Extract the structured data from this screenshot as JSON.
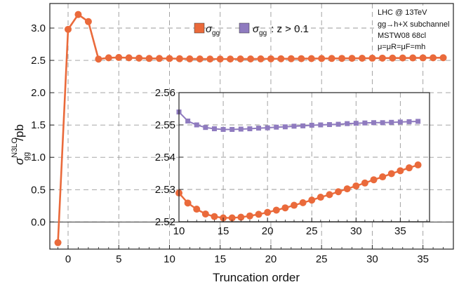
{
  "colors": {
    "series_gg": "#ea6a3b",
    "series_gg_cut": "#8f7bbf",
    "grid": "#999999",
    "frame": "#222222"
  },
  "legend": {
    "item1": {
      "main": "σ",
      "sub": "gg"
    },
    "item2": {
      "main": "σ",
      "sub": "gg",
      "suffix": ": z > 0.1"
    }
  },
  "annotations": {
    "line1": "LHC @ 13TeV",
    "line2": "gg→h+X subchannel",
    "line3": "MSTW08 68cl",
    "line4": "μ=μR=μF=mh"
  },
  "chart_data": [
    {
      "type": "line",
      "xlabel": "Truncation order",
      "ylabel": "σ_gg^N3LO/pb",
      "xlim": [
        -1.8,
        38
      ],
      "ylim": [
        -0.42,
        3.38
      ],
      "xticks": [
        0,
        5,
        10,
        15,
        20,
        25,
        30,
        35
      ],
      "yticks": [
        0.0,
        0.5,
        1.0,
        1.5,
        2.0,
        2.5,
        3.0
      ],
      "ytick_labels": [
        "0.0",
        "0.5",
        "1.0",
        "1.5",
        "2.0",
        "2.5",
        "3.0"
      ],
      "grid": true,
      "legend_position": "top-center",
      "series": [
        {
          "name": "σgg",
          "x": [
            -1,
            0,
            1,
            2,
            3,
            4,
            5,
            6,
            7,
            8,
            9,
            10,
            11,
            12,
            13,
            14,
            15,
            16,
            17,
            18,
            19,
            20,
            21,
            22,
            23,
            24,
            25,
            26,
            27,
            28,
            29,
            30,
            31,
            32,
            33,
            34,
            35,
            36,
            37
          ],
          "values": [
            -0.32,
            2.98,
            3.21,
            3.1,
            2.52,
            2.54,
            2.545,
            2.54,
            2.535,
            2.53,
            2.53,
            2.529,
            2.526,
            2.523,
            2.522,
            2.521,
            2.521,
            2.521,
            2.522,
            2.522,
            2.523,
            2.524,
            2.525,
            2.526,
            2.527,
            2.528,
            2.529,
            2.53,
            2.531,
            2.532,
            2.533,
            2.534,
            2.535,
            2.536,
            2.537,
            2.538,
            2.539,
            2.54,
            2.541
          ]
        }
      ]
    },
    {
      "type": "line",
      "xlim": [
        10,
        38.3
      ],
      "ylim": [
        2.52,
        2.56
      ],
      "xticks": [
        10,
        15,
        20,
        25,
        30,
        35
      ],
      "yticks": [
        2.52,
        2.53,
        2.54,
        2.55,
        2.56
      ],
      "ytick_labels": [
        "2.52",
        "2.53",
        "2.54",
        "2.55",
        "2.56"
      ],
      "grid": true,
      "series": [
        {
          "name": "σgg",
          "x": [
            10,
            11,
            12,
            13,
            14,
            15,
            16,
            17,
            18,
            19,
            20,
            21,
            22,
            23,
            24,
            25,
            26,
            27,
            28,
            29,
            30,
            31,
            32,
            33,
            34,
            35,
            36,
            37
          ],
          "values": [
            2.5289,
            2.5258,
            2.5239,
            2.5224,
            2.5216,
            2.5212,
            2.5212,
            2.5214,
            2.5218,
            2.5223,
            2.5229,
            2.5236,
            2.5243,
            2.5251,
            2.5259,
            2.5267,
            2.5276,
            2.5284,
            2.5293,
            2.5302,
            2.5311,
            2.532,
            2.533,
            2.5339,
            2.5349,
            2.5358,
            2.5367,
            2.5376
          ]
        },
        {
          "name": "σgg : z > 0.1",
          "x": [
            10,
            11,
            12,
            13,
            14,
            15,
            16,
            17,
            18,
            19,
            20,
            21,
            22,
            23,
            24,
            25,
            26,
            27,
            28,
            29,
            30,
            31,
            32,
            33,
            34,
            35,
            36,
            37
          ],
          "values": [
            2.554,
            2.5512,
            2.55,
            2.5492,
            2.5488,
            2.5486,
            2.5486,
            2.5487,
            2.5488,
            2.549,
            2.5491,
            2.5493,
            2.5494,
            2.5496,
            2.5497,
            2.5499,
            2.55,
            2.5501,
            2.5502,
            2.5504,
            2.5505,
            2.5506,
            2.5507,
            2.5507,
            2.5508,
            2.5509,
            2.551,
            2.5511
          ]
        }
      ]
    }
  ]
}
